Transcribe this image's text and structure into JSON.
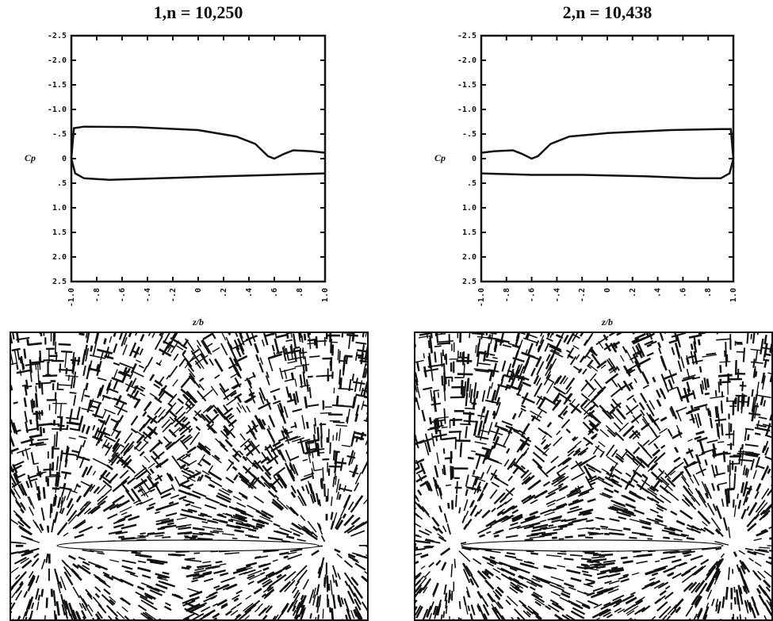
{
  "chart_data": [
    {
      "type": "line",
      "title": "1,n = 10,250",
      "x_label": "z/b",
      "y_label": "Cp",
      "series": [
        {
          "color": "#111111",
          "x": [
            -1,
            -0.98,
            -0.9,
            -0.5,
            0,
            0.3,
            0.45,
            0.55,
            0.6,
            0.68,
            0.75,
            0.9,
            1.0
          ],
          "values": [
            0,
            -0.62,
            -0.65,
            -0.64,
            -0.58,
            -0.45,
            -0.3,
            -0.05,
            0.0,
            -0.1,
            -0.17,
            -0.15,
            -0.12
          ]
        },
        {
          "color": "#111111",
          "x": [
            -1,
            -0.97,
            -0.9,
            -0.7,
            -0.3,
            0.2,
            0.6,
            1.0
          ],
          "values": [
            0,
            0.3,
            0.4,
            0.43,
            0.4,
            0.36,
            0.33,
            0.3
          ]
        }
      ],
      "xlim": [
        -1,
        1
      ],
      "xticks": [
        {
          "value": -1,
          "label": "-1.0"
        },
        {
          "value": -0.8,
          "label": "-.8"
        },
        {
          "value": -0.6,
          "label": "-.6"
        },
        {
          "value": -0.4,
          "label": "-.4"
        },
        {
          "value": -0.2,
          "label": "-.2"
        },
        0,
        {
          "value": 0.2,
          "label": ".2"
        },
        {
          "value": 0.4,
          "label": ".4"
        },
        {
          "value": 0.6,
          "label": ".6"
        },
        {
          "value": 0.8,
          "label": ".8"
        },
        {
          "value": 1,
          "label": "1.0"
        }
      ],
      "ylim": [
        -2.5,
        2.5
      ],
      "yticks": [
        -2.5,
        {
          "value": -2,
          "label": "-2.0"
        },
        -1.5,
        {
          "value": -1,
          "label": "-1.0"
        },
        {
          "value": -0.5,
          "label": "-.5"
        },
        0,
        {
          "value": 0.5,
          "label": ".5"
        },
        {
          "value": 1,
          "label": "1.0"
        },
        1.5,
        {
          "value": 2,
          "label": "2.0"
        },
        2.5
      ]
    },
    {
      "type": "line",
      "title": "2,n = 10,438",
      "x_label": "z/b",
      "y_label": "Cp",
      "series": [
        {
          "color": "#111111",
          "x": [
            -1.0,
            -0.9,
            -0.75,
            -0.68,
            -0.6,
            -0.55,
            -0.45,
            -0.3,
            0,
            0.5,
            0.9,
            0.98,
            1
          ],
          "values": [
            -0.12,
            -0.15,
            -0.17,
            -0.1,
            0.0,
            -0.05,
            -0.3,
            -0.45,
            -0.52,
            -0.58,
            -0.6,
            -0.6,
            0
          ]
        },
        {
          "color": "#111111",
          "x": [
            -1.0,
            -0.6,
            -0.2,
            0.3,
            0.7,
            0.9,
            0.97,
            1
          ],
          "values": [
            0.3,
            0.33,
            0.33,
            0.36,
            0.4,
            0.4,
            0.3,
            0
          ]
        }
      ],
      "xlim": [
        -1,
        1
      ],
      "xticks": [
        {
          "value": -1,
          "label": "-1.0"
        },
        {
          "value": -0.8,
          "label": "-.8"
        },
        {
          "value": -0.6,
          "label": "-.6"
        },
        {
          "value": -0.4,
          "label": "-.4"
        },
        {
          "value": -0.2,
          "label": "-.2"
        },
        0,
        {
          "value": 0.2,
          "label": ".2"
        },
        {
          "value": 0.4,
          "label": ".4"
        },
        {
          "value": 0.6,
          "label": ".6"
        },
        {
          "value": 0.8,
          "label": ".8"
        },
        {
          "value": 1,
          "label": "1.0"
        }
      ],
      "ylim": [
        -2.5,
        2.5
      ],
      "yticks": [
        -2.5,
        {
          "value": -2,
          "label": "-2.0"
        },
        -1.5,
        {
          "value": -1,
          "label": "-1.0"
        },
        {
          "value": -0.5,
          "label": "-.5"
        },
        0,
        {
          "value": 0.5,
          "label": ".5"
        },
        {
          "value": 1,
          "label": "1.0"
        },
        1.5,
        {
          "value": 2,
          "label": "2.0"
        },
        2.5
      ]
    }
  ]
}
